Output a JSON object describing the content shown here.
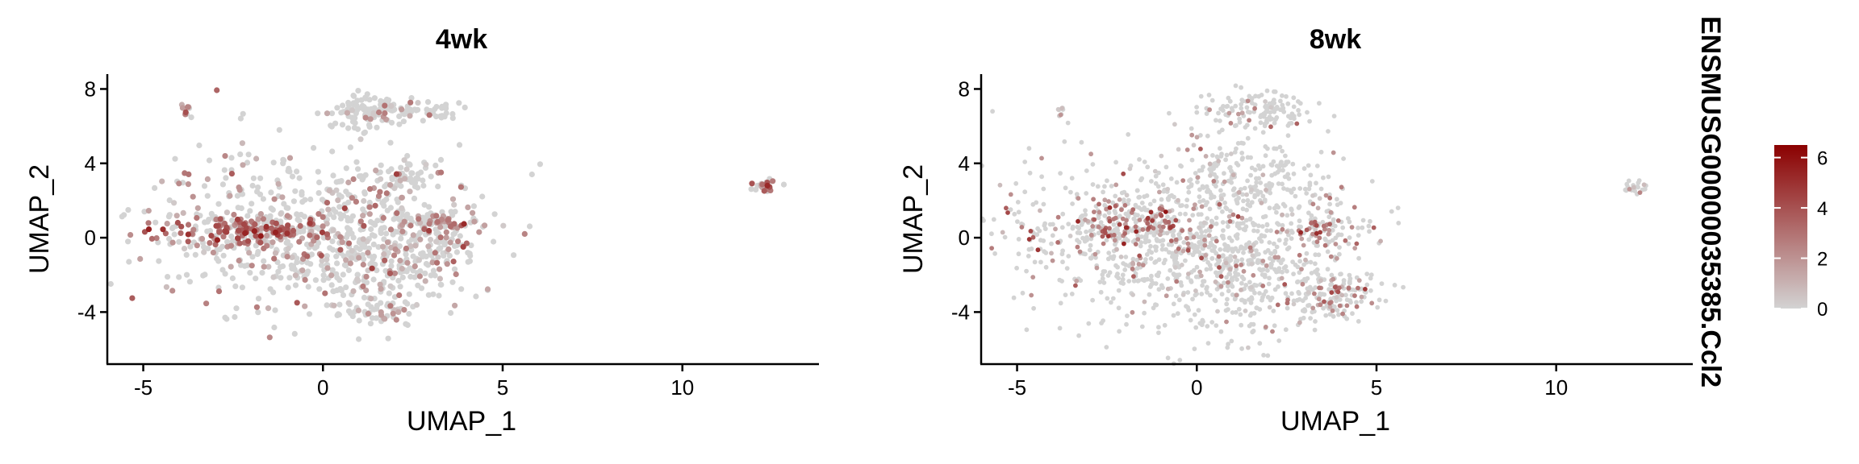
{
  "legend": {
    "title": "ENSMUSG00000035385.Ccl2",
    "ticks": [
      0,
      2,
      4,
      6
    ],
    "range": [
      0,
      6.5
    ],
    "low_color": "#d3d3d3",
    "high_color": "#8b0000"
  },
  "chart_data": [
    {
      "type": "scatter",
      "title": "4wk",
      "xlabel": "UMAP_1",
      "ylabel": "UMAP_2",
      "xlim": [
        -6,
        13.8
      ],
      "ylim": [
        -6.8,
        8.8
      ],
      "xticks": [
        -5,
        0,
        5,
        10
      ],
      "yticks": [
        -4,
        0,
        4,
        8
      ],
      "clusters": [
        {
          "cx": -0.8,
          "cy": 0.6,
          "sx": 2.2,
          "sy": 2.1,
          "n": 520,
          "expr_p": 0.28,
          "expr_mean": 1.6
        },
        {
          "cx": -1.8,
          "cy": 0.4,
          "sx": 1.2,
          "sy": 0.4,
          "n": 160,
          "expr_p": 0.65,
          "expr_mean": 3.4
        },
        {
          "cx": 1.5,
          "cy": -1.0,
          "sx": 1.3,
          "sy": 1.6,
          "n": 300,
          "expr_p": 0.25,
          "expr_mean": 1.5
        },
        {
          "cx": 1.6,
          "cy": -4.0,
          "sx": 0.5,
          "sy": 0.25,
          "n": 40,
          "expr_p": 0.35,
          "expr_mean": 1.8
        },
        {
          "cx": 3.2,
          "cy": 0.4,
          "sx": 0.7,
          "sy": 0.8,
          "n": 90,
          "expr_p": 0.35,
          "expr_mean": 2.2
        },
        {
          "cx": 3.3,
          "cy": 0.9,
          "sx": 0.3,
          "sy": 0.2,
          "n": 25,
          "expr_p": 0.7,
          "expr_mean": 3.0
        },
        {
          "cx": 1.2,
          "cy": 6.8,
          "sx": 0.45,
          "sy": 0.45,
          "n": 80,
          "expr_p": 0.15,
          "expr_mean": 1.6
        },
        {
          "cx": 2.4,
          "cy": 6.8,
          "sx": 0.7,
          "sy": 0.25,
          "n": 70,
          "expr_p": 0.08,
          "expr_mean": 1.2
        },
        {
          "cx": 2.2,
          "cy": 3.4,
          "sx": 0.6,
          "sy": 0.6,
          "n": 50,
          "expr_p": 0.2,
          "expr_mean": 1.5
        },
        {
          "cx": -3.8,
          "cy": 6.9,
          "sx": 0.08,
          "sy": 0.15,
          "n": 8,
          "expr_p": 0.9,
          "expr_mean": 3.5
        },
        {
          "cx": 12.3,
          "cy": 2.8,
          "sx": 0.2,
          "sy": 0.18,
          "n": 22,
          "expr_p": 0.6,
          "expr_mean": 3.0
        }
      ]
    },
    {
      "type": "scatter",
      "title": "8wk",
      "xlabel": "UMAP_1",
      "ylabel": "UMAP_2",
      "xlim": [
        -6,
        13.8
      ],
      "ylim": [
        -6.8,
        8.8
      ],
      "xticks": [
        -5,
        0,
        5,
        10
      ],
      "yticks": [
        -4,
        0,
        4,
        8
      ],
      "clusters": [
        {
          "cx": -1.0,
          "cy": 0.2,
          "sx": 2.3,
          "sy": 2.3,
          "n": 700,
          "expr_p": 0.18,
          "expr_mean": 1.4
        },
        {
          "cx": -2.0,
          "cy": 0.6,
          "sx": 1.1,
          "sy": 0.6,
          "n": 180,
          "expr_p": 0.5,
          "expr_mean": 3.0
        },
        {
          "cx": 1.2,
          "cy": -1.8,
          "sx": 1.3,
          "sy": 1.8,
          "n": 380,
          "expr_p": 0.12,
          "expr_mean": 1.3
        },
        {
          "cx": 1.6,
          "cy": 3.0,
          "sx": 1.0,
          "sy": 1.0,
          "n": 180,
          "expr_p": 0.12,
          "expr_mean": 1.3
        },
        {
          "cx": 3.6,
          "cy": 0.6,
          "sx": 0.5,
          "sy": 0.6,
          "n": 90,
          "expr_p": 0.4,
          "expr_mean": 2.4
        },
        {
          "cx": 3.8,
          "cy": -3.0,
          "sx": 0.7,
          "sy": 0.6,
          "n": 140,
          "expr_p": 0.35,
          "expr_mean": 2.6
        },
        {
          "cx": 1.6,
          "cy": 6.8,
          "sx": 0.8,
          "sy": 0.55,
          "n": 130,
          "expr_p": 0.08,
          "expr_mean": 1.4
        },
        {
          "cx": -3.8,
          "cy": 6.8,
          "sx": 0.07,
          "sy": 0.15,
          "n": 8,
          "expr_p": 0.5,
          "expr_mean": 2.0
        },
        {
          "cx": 12.2,
          "cy": 2.7,
          "sx": 0.22,
          "sy": 0.18,
          "n": 24,
          "expr_p": 0.2,
          "expr_mean": 1.6
        }
      ]
    }
  ]
}
